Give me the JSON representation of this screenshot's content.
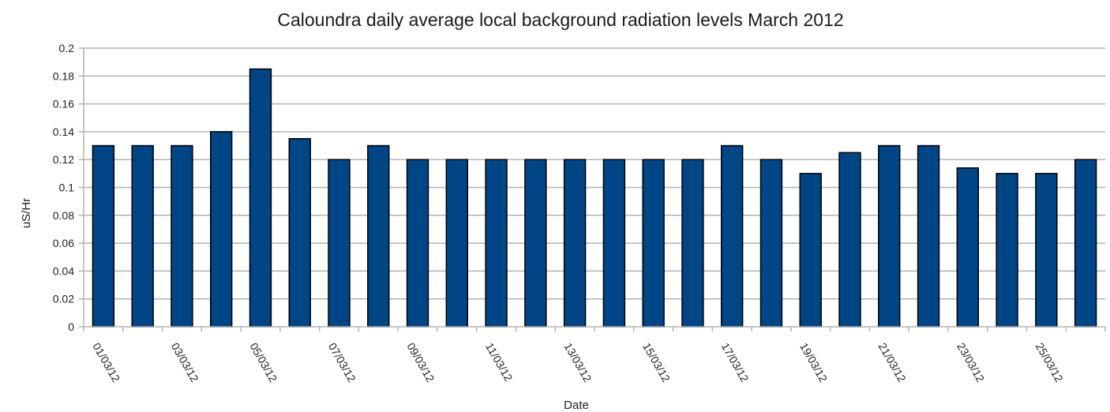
{
  "chart_data": {
    "type": "bar",
    "title": "Caloundra daily average local background radiation levels March 2012",
    "xlabel": "Date",
    "ylabel": "uS/Hr",
    "ylim": [
      0,
      0.2
    ],
    "yticks": [
      0,
      0.02,
      0.04,
      0.06,
      0.08,
      0.1,
      0.12,
      0.14,
      0.16,
      0.18,
      0.2
    ],
    "ytick_labels": [
      "0",
      "0.02",
      "0.04",
      "0.06",
      "0.08",
      "0.1",
      "0.12",
      "0.14",
      "0.16",
      "0.18",
      "0.2"
    ],
    "grid": true,
    "bar_color": "#004586",
    "categories": [
      "01/03/12",
      "02/03/12",
      "03/03/12",
      "04/03/12",
      "05/03/12",
      "06/03/12",
      "07/03/12",
      "08/03/12",
      "09/03/12",
      "10/03/12",
      "11/03/12",
      "12/03/12",
      "13/03/12",
      "14/03/12",
      "15/03/12",
      "16/03/12",
      "17/03/12",
      "18/03/12",
      "19/03/12",
      "20/03/12",
      "21/03/12",
      "22/03/12",
      "23/03/12",
      "24/03/12",
      "25/03/12",
      "26/03/12"
    ],
    "labeled_categories": [
      "01/03/12",
      "03/03/12",
      "05/03/12",
      "07/03/12",
      "09/03/12",
      "11/03/12",
      "13/03/12",
      "15/03/12",
      "17/03/12",
      "19/03/12",
      "21/03/12",
      "23/03/12",
      "25/03/12"
    ],
    "values": [
      0.13,
      0.13,
      0.13,
      0.14,
      0.185,
      0.135,
      0.12,
      0.13,
      0.12,
      0.12,
      0.12,
      0.12,
      0.12,
      0.12,
      0.12,
      0.12,
      0.13,
      0.12,
      0.11,
      0.125,
      0.13,
      0.13,
      0.114,
      0.11,
      0.11,
      0.12
    ]
  }
}
